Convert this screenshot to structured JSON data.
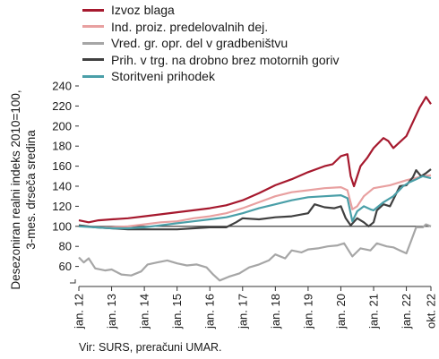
{
  "chart_data": {
    "type": "line",
    "ylabel_lines": [
      "Desezoniran realni indeks 2010=100,",
      "3-mes. drseča sredina"
    ],
    "ylim": [
      40,
      240
    ],
    "y_ticks": [
      60,
      80,
      100,
      120,
      140,
      160,
      180,
      200,
      220,
      240
    ],
    "x_ticks": [
      "jan. 12",
      "jan. 13",
      "jan. 14",
      "jan. 15",
      "jan. 16",
      "jan. 17",
      "jan. 18",
      "jan. 19",
      "jan. 20",
      "jan. 21",
      "jan. 22",
      "okt. 22"
    ],
    "x_tick_positions": [
      2012.0,
      2013.0,
      2014.0,
      2015.0,
      2016.0,
      2017.0,
      2018.0,
      2019.0,
      2020.0,
      2021.0,
      2022.0,
      2022.75
    ],
    "xlim": [
      2012.0,
      2022.75
    ],
    "reference_line": 100,
    "series": [
      {
        "name": "Izvoz blaga",
        "color": "#a6192e",
        "points": [
          [
            2012.0,
            106
          ],
          [
            2012.3,
            104
          ],
          [
            2012.6,
            106
          ],
          [
            2013.0,
            107
          ],
          [
            2013.5,
            108
          ],
          [
            2014.0,
            110
          ],
          [
            2014.5,
            112
          ],
          [
            2015.0,
            114
          ],
          [
            2015.5,
            116
          ],
          [
            2016.0,
            118
          ],
          [
            2016.5,
            121
          ],
          [
            2017.0,
            126
          ],
          [
            2017.5,
            133
          ],
          [
            2018.0,
            141
          ],
          [
            2018.5,
            147
          ],
          [
            2019.0,
            154
          ],
          [
            2019.5,
            160
          ],
          [
            2019.75,
            162
          ],
          [
            2020.0,
            170
          ],
          [
            2020.2,
            172
          ],
          [
            2020.3,
            150
          ],
          [
            2020.4,
            140
          ],
          [
            2020.6,
            160
          ],
          [
            2020.8,
            168
          ],
          [
            2021.0,
            178
          ],
          [
            2021.3,
            188
          ],
          [
            2021.45,
            185
          ],
          [
            2021.6,
            178
          ],
          [
            2021.8,
            184
          ],
          [
            2022.0,
            190
          ],
          [
            2022.2,
            204
          ],
          [
            2022.4,
            218
          ],
          [
            2022.6,
            229
          ],
          [
            2022.75,
            222
          ]
        ]
      },
      {
        "name": "Ind. proiz. predelovalnih dej.",
        "color": "#e8a0a0",
        "points": [
          [
            2012.0,
            101
          ],
          [
            2012.5,
            99
          ],
          [
            2013.0,
            99
          ],
          [
            2013.5,
            100
          ],
          [
            2014.0,
            102
          ],
          [
            2014.5,
            104
          ],
          [
            2015.0,
            105
          ],
          [
            2015.5,
            108
          ],
          [
            2016.0,
            110
          ],
          [
            2016.5,
            113
          ],
          [
            2017.0,
            118
          ],
          [
            2017.5,
            124
          ],
          [
            2018.0,
            130
          ],
          [
            2018.5,
            134
          ],
          [
            2019.0,
            136
          ],
          [
            2019.5,
            138
          ],
          [
            2020.0,
            139
          ],
          [
            2020.2,
            136
          ],
          [
            2020.35,
            117
          ],
          [
            2020.5,
            120
          ],
          [
            2020.7,
            130
          ],
          [
            2021.0,
            138
          ],
          [
            2021.5,
            141
          ],
          [
            2022.0,
            146
          ],
          [
            2022.5,
            150
          ],
          [
            2022.75,
            151
          ]
        ]
      },
      {
        "name": "Vred. gr. opr. del v gradbeništvu",
        "color": "#a6a6a6",
        "points": [
          [
            2012.0,
            69
          ],
          [
            2012.15,
            64
          ],
          [
            2012.3,
            68
          ],
          [
            2012.5,
            58
          ],
          [
            2012.8,
            56
          ],
          [
            2013.0,
            57
          ],
          [
            2013.3,
            52
          ],
          [
            2013.6,
            51
          ],
          [
            2013.9,
            55
          ],
          [
            2014.1,
            62
          ],
          [
            2014.4,
            64
          ],
          [
            2014.7,
            66
          ],
          [
            2015.0,
            63
          ],
          [
            2015.3,
            61
          ],
          [
            2015.6,
            62
          ],
          [
            2015.9,
            59
          ],
          [
            2016.1,
            52
          ],
          [
            2016.3,
            46
          ],
          [
            2016.6,
            50
          ],
          [
            2016.9,
            53
          ],
          [
            2017.2,
            59
          ],
          [
            2017.5,
            62
          ],
          [
            2017.8,
            66
          ],
          [
            2018.0,
            72
          ],
          [
            2018.3,
            68
          ],
          [
            2018.5,
            76
          ],
          [
            2018.8,
            74
          ],
          [
            2019.0,
            77
          ],
          [
            2019.3,
            78
          ],
          [
            2019.6,
            80
          ],
          [
            2019.9,
            81
          ],
          [
            2020.1,
            83
          ],
          [
            2020.35,
            70
          ],
          [
            2020.6,
            78
          ],
          [
            2020.9,
            76
          ],
          [
            2021.1,
            83
          ],
          [
            2021.4,
            80
          ],
          [
            2021.6,
            79
          ],
          [
            2021.8,
            76
          ],
          [
            2022.0,
            73
          ],
          [
            2022.15,
            86
          ],
          [
            2022.3,
            99
          ],
          [
            2022.5,
            99
          ],
          [
            2022.6,
            102
          ],
          [
            2022.75,
            100
          ]
        ]
      },
      {
        "name": "Prih. v trg. na drobno brez motornih goriv",
        "color": "#404040",
        "points": [
          [
            2012.0,
            101
          ],
          [
            2012.5,
            99
          ],
          [
            2013.0,
            98
          ],
          [
            2013.5,
            97
          ],
          [
            2014.0,
            97
          ],
          [
            2014.5,
            97
          ],
          [
            2015.0,
            97
          ],
          [
            2015.5,
            98
          ],
          [
            2016.0,
            99
          ],
          [
            2016.5,
            99
          ],
          [
            2016.8,
            104
          ],
          [
            2017.0,
            108
          ],
          [
            2017.5,
            107
          ],
          [
            2018.0,
            109
          ],
          [
            2018.5,
            110
          ],
          [
            2019.0,
            113
          ],
          [
            2019.2,
            122
          ],
          [
            2019.5,
            119
          ],
          [
            2019.8,
            118
          ],
          [
            2020.0,
            120
          ],
          [
            2020.15,
            108
          ],
          [
            2020.3,
            101
          ],
          [
            2020.5,
            108
          ],
          [
            2020.7,
            104
          ],
          [
            2020.85,
            100
          ],
          [
            2021.0,
            104
          ],
          [
            2021.1,
            116
          ],
          [
            2021.3,
            122
          ],
          [
            2021.5,
            120
          ],
          [
            2021.8,
            140
          ],
          [
            2022.0,
            141
          ],
          [
            2022.2,
            149
          ],
          [
            2022.3,
            156
          ],
          [
            2022.45,
            150
          ],
          [
            2022.6,
            153
          ],
          [
            2022.75,
            157
          ]
        ]
      },
      {
        "name": "Storitveni prihodek",
        "color": "#4a9fa8",
        "points": [
          [
            2012.0,
            100
          ],
          [
            2012.5,
            99
          ],
          [
            2013.0,
            98
          ],
          [
            2013.5,
            98
          ],
          [
            2014.0,
            99
          ],
          [
            2014.5,
            101
          ],
          [
            2015.0,
            103
          ],
          [
            2015.5,
            105
          ],
          [
            2016.0,
            107
          ],
          [
            2016.5,
            109
          ],
          [
            2017.0,
            113
          ],
          [
            2017.5,
            118
          ],
          [
            2018.0,
            122
          ],
          [
            2018.5,
            126
          ],
          [
            2019.0,
            129
          ],
          [
            2019.5,
            130
          ],
          [
            2020.0,
            131
          ],
          [
            2020.2,
            128
          ],
          [
            2020.35,
            105
          ],
          [
            2020.5,
            115
          ],
          [
            2020.7,
            120
          ],
          [
            2020.9,
            117
          ],
          [
            2021.0,
            116
          ],
          [
            2021.3,
            124
          ],
          [
            2021.6,
            130
          ],
          [
            2021.9,
            140
          ],
          [
            2022.1,
            144
          ],
          [
            2022.3,
            147
          ],
          [
            2022.5,
            150
          ],
          [
            2022.75,
            148
          ]
        ]
      }
    ]
  },
  "source_text": "Vir: SURS, preračuni UMAR."
}
